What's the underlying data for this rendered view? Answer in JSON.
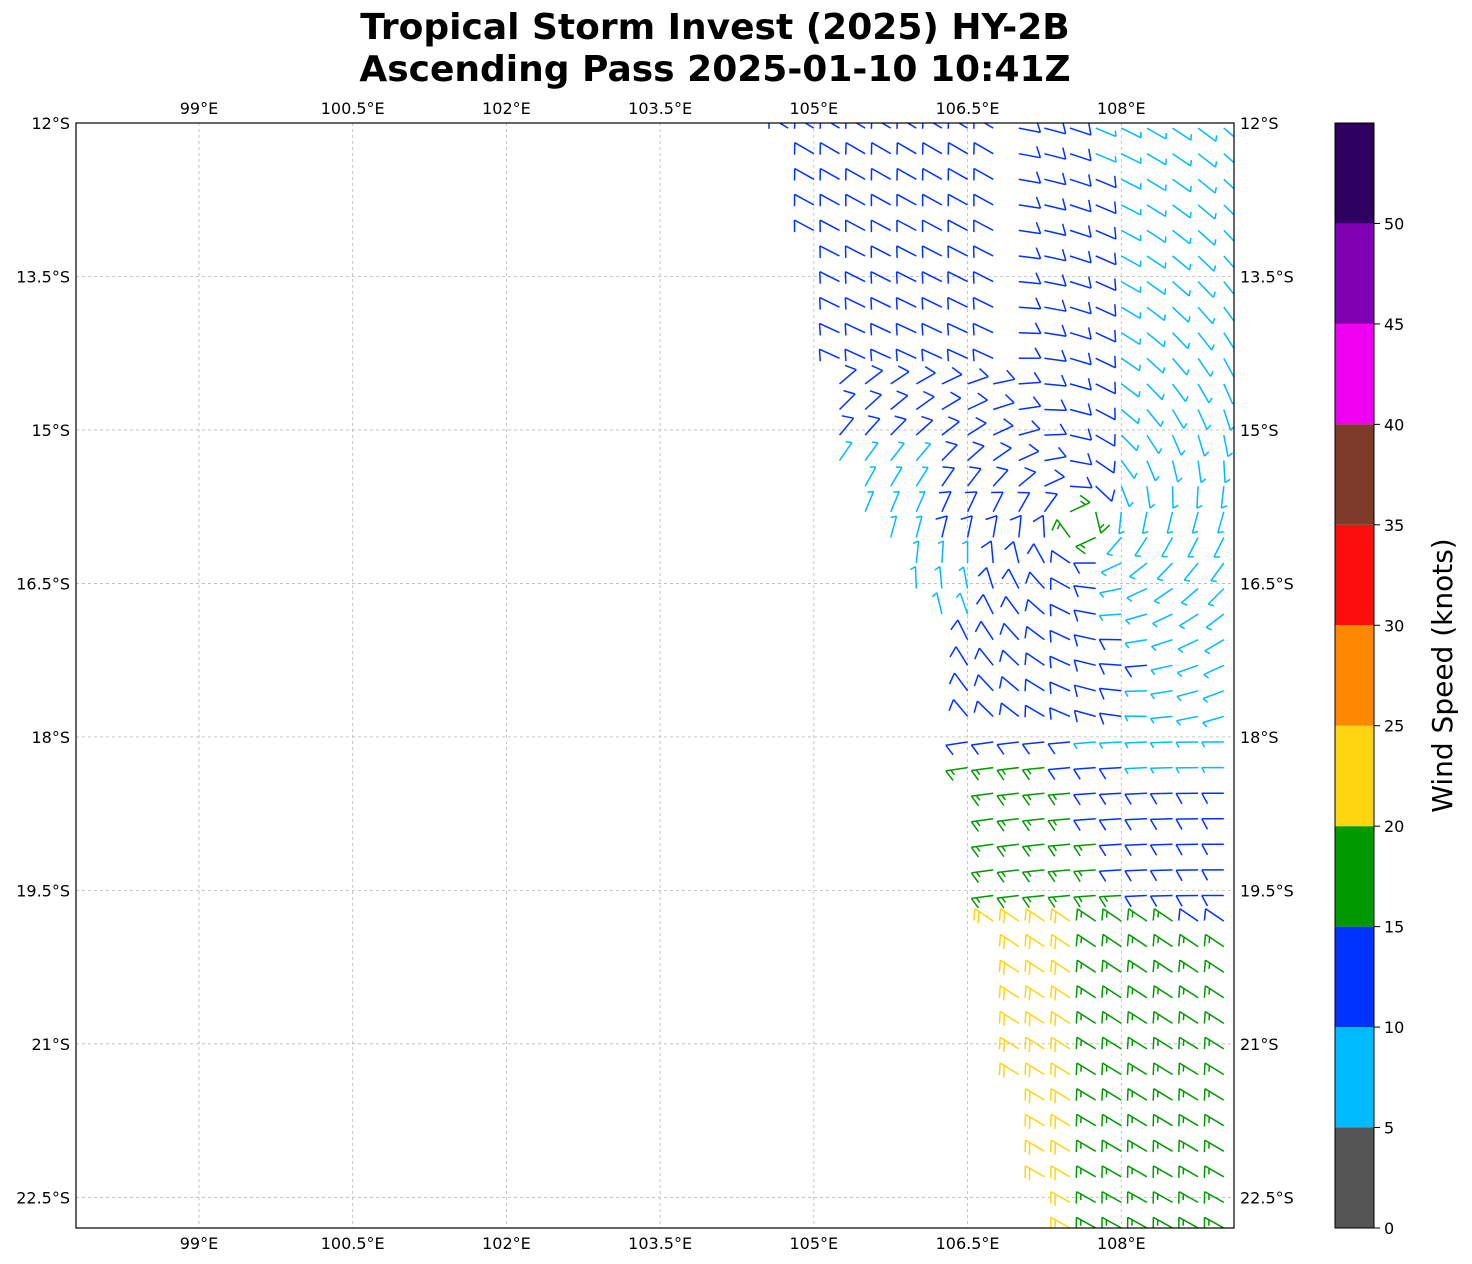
{
  "title_line1": "Tropical Storm Invest (2025) HY-2B",
  "title_line2": "Ascending Pass 2025-01-10 10:41Z",
  "map": {
    "lon_range": [
      97.8,
      109.1
    ],
    "lat_range": [
      -22.8,
      -12.0
    ],
    "lon_ticks": [
      {
        "value": 99.0,
        "label": "99°E"
      },
      {
        "value": 100.5,
        "label": "100.5°E"
      },
      {
        "value": 102.0,
        "label": "102°E"
      },
      {
        "value": 103.5,
        "label": "103.5°E"
      },
      {
        "value": 105.0,
        "label": "105°E"
      },
      {
        "value": 106.5,
        "label": "106.5°E"
      },
      {
        "value": 108.0,
        "label": "108°E"
      }
    ],
    "lat_ticks": [
      {
        "value": -12.0,
        "label": "12°S"
      },
      {
        "value": -13.5,
        "label": "13.5°S"
      },
      {
        "value": -15.0,
        "label": "15°S"
      },
      {
        "value": -16.5,
        "label": "16.5°S"
      },
      {
        "value": -18.0,
        "label": "18°S"
      },
      {
        "value": -19.5,
        "label": "19.5°S"
      },
      {
        "value": -21.0,
        "label": "21°S"
      },
      {
        "value": -22.5,
        "label": "22.5°S"
      }
    ],
    "grid": true,
    "grid_style": "dashed",
    "swath_polygon_lonlat": [
      [
        104.7,
        -12.0
      ],
      [
        109.1,
        -12.0
      ],
      [
        109.1,
        -22.8
      ],
      [
        107.5,
        -22.8
      ],
      [
        107.1,
        -22.1
      ],
      [
        106.8,
        -20.2
      ],
      [
        106.65,
        -19.2
      ],
      [
        106.45,
        -18.3
      ],
      [
        106.3,
        -17.8
      ],
      [
        106.5,
        -17.0
      ],
      [
        106.0,
        -16.7
      ],
      [
        105.6,
        -16.0
      ],
      [
        105.2,
        -15.3
      ],
      [
        105.1,
        -13.5
      ],
      [
        104.9,
        -12.6
      ]
    ]
  },
  "colorbar": {
    "label": "Wind Speed (knots)",
    "range": [
      0,
      55
    ],
    "bins": [
      {
        "from": 0,
        "to": 5,
        "color": "#555555"
      },
      {
        "from": 5,
        "to": 10,
        "color": "#00bbff"
      },
      {
        "from": 10,
        "to": 15,
        "color": "#0033ff"
      },
      {
        "from": 15,
        "to": 20,
        "color": "#009900"
      },
      {
        "from": 20,
        "to": 25,
        "color": "#ffd511"
      },
      {
        "from": 25,
        "to": 30,
        "color": "#ff8800"
      },
      {
        "from": 30,
        "to": 35,
        "color": "#ff0e0e"
      },
      {
        "from": 35,
        "to": 40,
        "color": "#7f3b2a"
      },
      {
        "from": 40,
        "to": 45,
        "color": "#f000f0"
      },
      {
        "from": 45,
        "to": 50,
        "color": "#7f00b2"
      },
      {
        "from": 50,
        "to": 55,
        "color": "#2e0060"
      }
    ],
    "ticks": [
      {
        "value": 0,
        "label": "0"
      },
      {
        "value": 5,
        "label": "5"
      },
      {
        "value": 10,
        "label": "10"
      },
      {
        "value": 15,
        "label": "15"
      },
      {
        "value": 20,
        "label": "20"
      },
      {
        "value": 25,
        "label": "25"
      },
      {
        "value": 30,
        "label": "30"
      },
      {
        "value": 35,
        "label": "35"
      },
      {
        "value": 40,
        "label": "40"
      },
      {
        "value": 45,
        "label": "45"
      },
      {
        "value": 50,
        "label": "50"
      }
    ]
  },
  "wind_field": {
    "center": {
      "lon": 107.6,
      "lat": -15.9
    },
    "rotation": "clockwise",
    "grid_spacing_deg": 0.25,
    "note_regions": [
      {
        "name": "north-east",
        "speed_kt": 8
      },
      {
        "name": "north-west",
        "speed_kt": 12
      },
      {
        "name": "center",
        "speed_kt": 7
      },
      {
        "name": "south-band",
        "speed_kt": 13
      },
      {
        "name": "south-west",
        "speed_kt": 17
      },
      {
        "name": "far-south-west",
        "speed_kt": 22
      },
      {
        "name": "far-south-east",
        "speed_kt": 18
      }
    ]
  }
}
